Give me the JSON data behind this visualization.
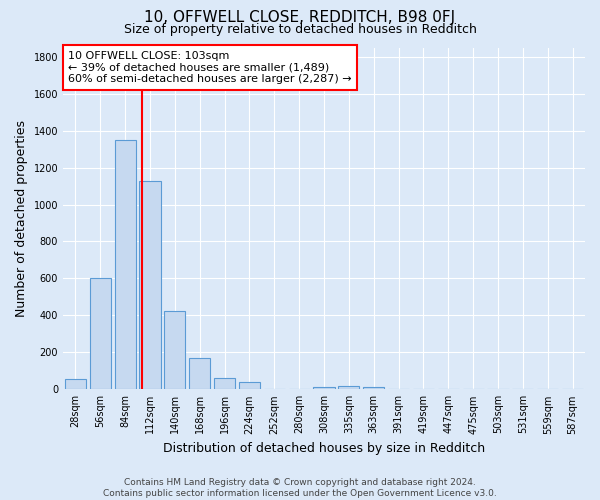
{
  "title": "10, OFFWELL CLOSE, REDDITCH, B98 0FJ",
  "subtitle": "Size of property relative to detached houses in Redditch",
  "xlabel": "Distribution of detached houses by size in Redditch",
  "ylabel": "Number of detached properties",
  "footer": "Contains HM Land Registry data © Crown copyright and database right 2024.\nContains public sector information licensed under the Open Government Licence v3.0.",
  "bar_categories": [
    "28sqm",
    "56sqm",
    "84sqm",
    "112sqm",
    "140sqm",
    "168sqm",
    "196sqm",
    "224sqm",
    "252sqm",
    "280sqm",
    "308sqm",
    "335sqm",
    "363sqm",
    "391sqm",
    "419sqm",
    "447sqm",
    "475sqm",
    "503sqm",
    "531sqm",
    "559sqm",
    "587sqm"
  ],
  "bar_values": [
    57,
    600,
    1350,
    1130,
    425,
    170,
    60,
    38,
    0,
    0,
    15,
    20,
    10,
    0,
    0,
    0,
    0,
    0,
    0,
    0,
    0
  ],
  "bar_color": "#c6d9f0",
  "bar_edge_color": "#5b9bd5",
  "ylim": [
    0,
    1850
  ],
  "yticks": [
    0,
    200,
    400,
    600,
    800,
    1000,
    1200,
    1400,
    1600,
    1800
  ],
  "vline_color": "red",
  "annotation_text": "10 OFFWELL CLOSE: 103sqm\n← 39% of detached houses are smaller (1,489)\n60% of semi-detached houses are larger (2,287) →",
  "annotation_box_color": "white",
  "annotation_box_edge": "red",
  "bg_color": "#dce9f8",
  "plot_bg_color": "#dce9f8",
  "grid_color": "white",
  "title_fontsize": 11,
  "subtitle_fontsize": 9,
  "ylabel_fontsize": 9,
  "xlabel_fontsize": 9,
  "tick_fontsize": 7,
  "annotation_fontsize": 8,
  "footer_fontsize": 6.5
}
